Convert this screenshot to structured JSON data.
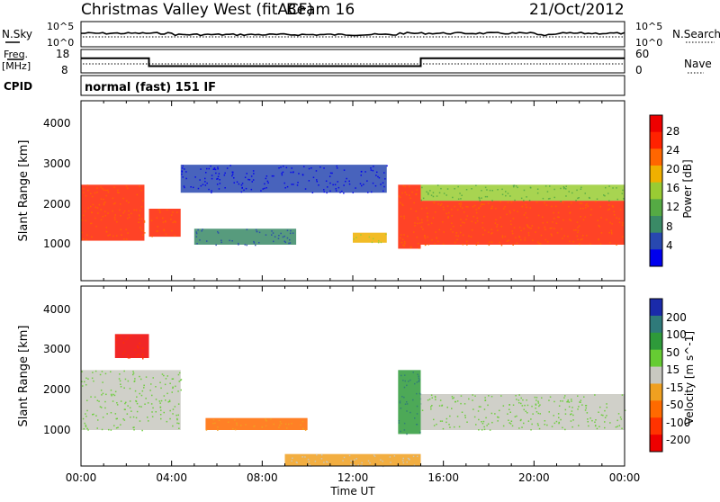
{
  "header": {
    "station": "Christmas Valley West (fitACF)",
    "beam": "Beam 16",
    "date": "21/Oct/2012"
  },
  "noise_panel": {
    "left_label": "N.Sky",
    "right_label": "N.Search",
    "left_ticks": [
      "10^5",
      "10^0"
    ],
    "right_ticks": [
      "10^5",
      "10^0"
    ]
  },
  "freq_panel": {
    "left_label_line1": "Freq.",
    "left_label_line2": "[MHz]",
    "right_label": "Nave",
    "left_ticks": [
      "18",
      "8"
    ],
    "right_ticks": [
      "60",
      "0"
    ]
  },
  "cpid": {
    "label": "CPID",
    "value": "normal (fast) 151 IF"
  },
  "power_panel": {
    "ylabel": "Slant Range [km]",
    "yticks": [
      "4000",
      "3000",
      "2000",
      "1000"
    ],
    "colorbar_label": "Power [dB]",
    "colorbar_ticks": [
      "28",
      "24",
      "20",
      "16",
      "12",
      "8",
      "4"
    ],
    "colors": [
      "#0000ee",
      "#2848b0",
      "#3a8a66",
      "#55aa44",
      "#99cc33",
      "#f0b000",
      "#ff6600",
      "#ff2200",
      "#ee0000"
    ]
  },
  "velocity_panel": {
    "ylabel": "Slant Range [km]",
    "yticks": [
      "4000",
      "3000",
      "2000",
      "1000"
    ],
    "colorbar_label": "Velocity [m s^-1]",
    "colorbar_ticks": [
      "200",
      "100",
      "50",
      "15",
      "-15",
      "-50",
      "-100",
      "-200"
    ],
    "colors": [
      "#1a2aaa",
      "#2f7a7a",
      "#2e9a3a",
      "#66cc33",
      "#c8c8c0",
      "#f0a020",
      "#ff6a00",
      "#ff3300",
      "#ee0000"
    ]
  },
  "time_axis": {
    "xlabel": "Time UT",
    "ticks": [
      "00:00",
      "04:00",
      "08:00",
      "12:00",
      "16:00",
      "20:00",
      "00:00"
    ]
  },
  "chart_data": {
    "type": "heatmap",
    "title": "Christmas Valley West (fitACF) Beam 16 21/Oct/2012",
    "xlabel": "Time UT",
    "ylabel": "Slant Range [km]",
    "xlim_hours": [
      0,
      24
    ],
    "ylim_km": [
      0,
      4500
    ],
    "frequency_mhz": [
      {
        "start": "00:00",
        "end": "03:00",
        "value": 14.5
      },
      {
        "start": "03:00",
        "end": "15:00",
        "value": 10.5
      },
      {
        "start": "15:00",
        "end": "24:00",
        "value": 14.5
      }
    ],
    "power_regions": [
      {
        "t": [
          0.0,
          2.8
        ],
        "range_km": [
          1000,
          2400
        ],
        "power_db": 26
      },
      {
        "t": [
          3.0,
          4.4
        ],
        "range_km": [
          1100,
          1800
        ],
        "power_db": 25
      },
      {
        "t": [
          4.4,
          13.5
        ],
        "range_km": [
          2200,
          2900
        ],
        "power_db": 6
      },
      {
        "t": [
          5.0,
          9.5
        ],
        "range_km": [
          900,
          1300
        ],
        "power_db": 8
      },
      {
        "t": [
          12.0,
          13.5
        ],
        "range_km": [
          950,
          1200
        ],
        "power_db": 18
      },
      {
        "t": [
          14.0,
          15.0
        ],
        "range_km": [
          800,
          2400
        ],
        "power_db": 26
      },
      {
        "t": [
          15.0,
          24.0
        ],
        "range_km": [
          900,
          2000
        ],
        "power_db": 26
      },
      {
        "t": [
          15.0,
          24.0
        ],
        "range_km": [
          2000,
          2400
        ],
        "power_db": 14
      }
    ],
    "velocity_regions": [
      {
        "t": [
          0.0,
          4.4
        ],
        "range_km": [
          900,
          2400
        ],
        "velocity": 0
      },
      {
        "t": [
          5.5,
          10.0
        ],
        "range_km": [
          900,
          1200
        ],
        "velocity": -60
      },
      {
        "t": [
          9.0,
          15.0
        ],
        "range_km": [
          0,
          300
        ],
        "velocity": -40
      },
      {
        "t": [
          14.0,
          15.0
        ],
        "range_km": [
          800,
          2400
        ],
        "velocity": 40
      },
      {
        "t": [
          15.0,
          24.0
        ],
        "range_km": [
          900,
          1800
        ],
        "velocity": 0
      },
      {
        "t": [
          1.5,
          3.0
        ],
        "range_km": [
          2700,
          3300
        ],
        "velocity": -200
      }
    ]
  }
}
